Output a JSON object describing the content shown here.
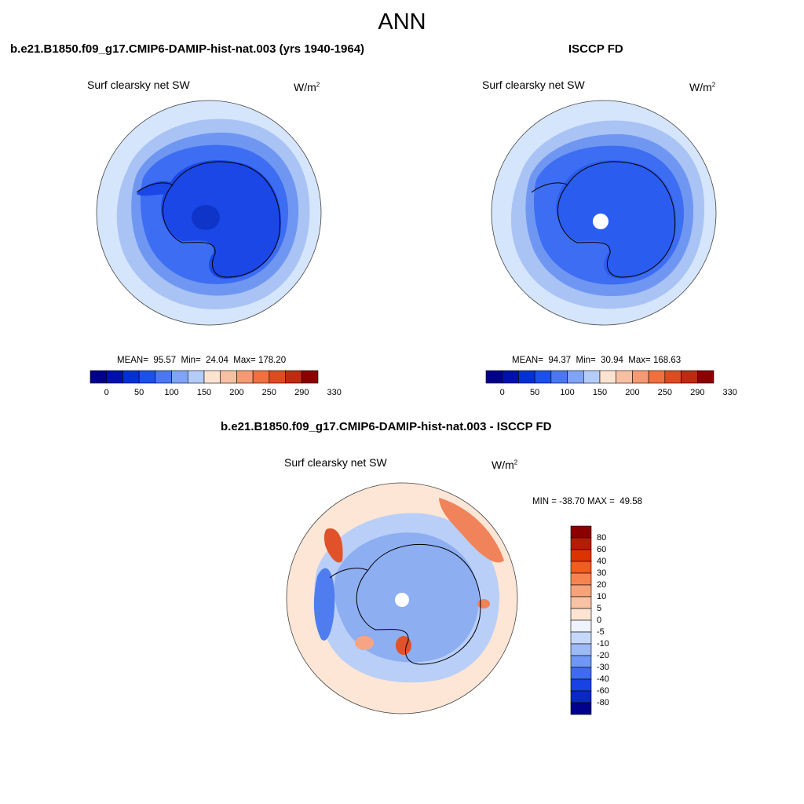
{
  "page": {
    "title": "ANN",
    "colors": {
      "ice_core": "#1a47e6",
      "ice_mid": "#3d6df2",
      "ice_outer": "#6f97f2",
      "ice_fringe": "#a9c3f5",
      "ocean": "#d5e5fb",
      "diff_neutral": "#fde6d6",
      "diff_pos": "#f0835a",
      "diff_neg": "#8eaef2"
    }
  },
  "panels": [
    {
      "title": "b.e21.B1850.f09_g17.CMIP6-DAMIP-hist-nat.003 (yrs 1940-1964)",
      "variable": "Surf clearsky net SW",
      "units": "W/m",
      "units_sup": "2",
      "stats": "MEAN=  95.57  Min=  24.04  Max= 178.20",
      "colorbar_ticks": [
        "0",
        "50",
        "100",
        "150",
        "200",
        "250",
        "290",
        "330"
      ]
    },
    {
      "title": "ISCCP FD",
      "variable": "Surf clearsky net SW",
      "units": "W/m",
      "units_sup": "2",
      "stats": "MEAN=  94.37  Min=  30.94  Max= 168.63",
      "colorbar_ticks": [
        "0",
        "50",
        "100",
        "150",
        "200",
        "250",
        "290",
        "330"
      ]
    },
    {
      "title": "b.e21.B1850.f09_g17.CMIP6-DAMIP-hist-nat.003 - ISCCP FD",
      "variable": "Surf clearsky net SW",
      "units": "W/m",
      "units_sup": "2",
      "stats": "MIN = -38.70 MAX =  49.58",
      "colorbar_ticks": [
        "80",
        "60",
        "40",
        "30",
        "20",
        "10",
        "5",
        "0",
        "-5",
        "-10",
        "-20",
        "-30",
        "-40",
        "-60",
        "-80"
      ]
    }
  ],
  "colorbars": {
    "field_colors": [
      "#00008b",
      "#0010b0",
      "#0030d8",
      "#1a4ff0",
      "#4a78f5",
      "#7fa3f7",
      "#b4ccf9",
      "#fbe3d2",
      "#f8bfa3",
      "#f59a72",
      "#f0703f",
      "#e04a20",
      "#c02a0e",
      "#8b0000"
    ],
    "diff_colors": [
      "#8b0000",
      "#b81c00",
      "#dd3300",
      "#f55a1e",
      "#f78450",
      "#f7a37a",
      "#f9c2a5",
      "#fde4d3",
      "#eef3fd",
      "#c6d8fa",
      "#9dbaf7",
      "#6f97f3",
      "#3f6bf0",
      "#1842e6",
      "#0a28c4",
      "#00008b"
    ]
  }
}
